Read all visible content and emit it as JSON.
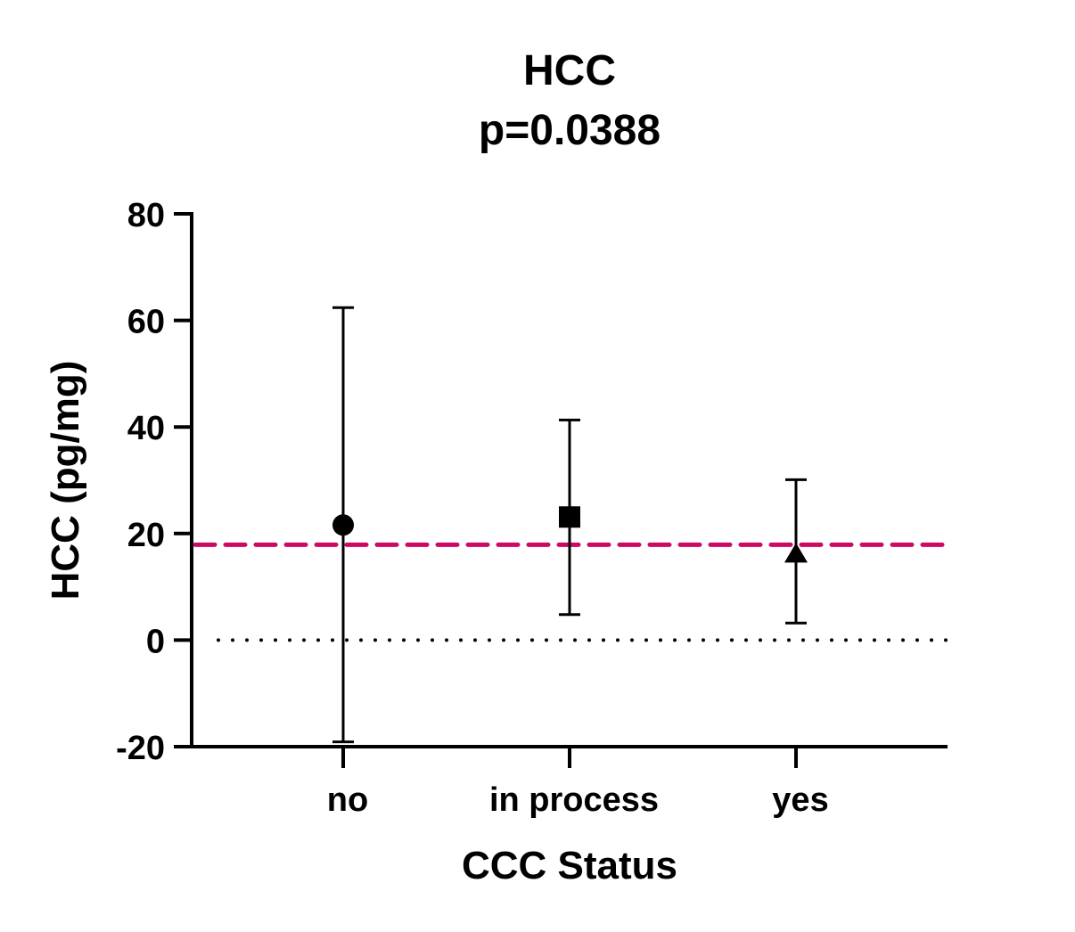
{
  "chart_data": {
    "type": "scatter",
    "title": "HCC",
    "subtitle": "p=0.0388",
    "xlabel": "CCC Status",
    "ylabel": "HCC (pg/mg)",
    "ylim": [
      -20,
      80
    ],
    "yticks": [
      -20,
      0,
      20,
      40,
      60,
      80
    ],
    "categories": [
      "no",
      "in process",
      "yes"
    ],
    "markers": [
      "circle",
      "square",
      "triangle"
    ],
    "values": [
      21.6,
      23.1,
      16.4
    ],
    "error_upper": [
      62.4,
      41.3,
      30.1
    ],
    "error_lower": [
      -19.1,
      4.8,
      3.2
    ],
    "reference_lines": [
      {
        "value": 17.9,
        "style": "dashed",
        "color": "#cc0a66"
      },
      {
        "value": 0,
        "style": "dotted",
        "color": "#000000"
      }
    ],
    "grid": false
  }
}
